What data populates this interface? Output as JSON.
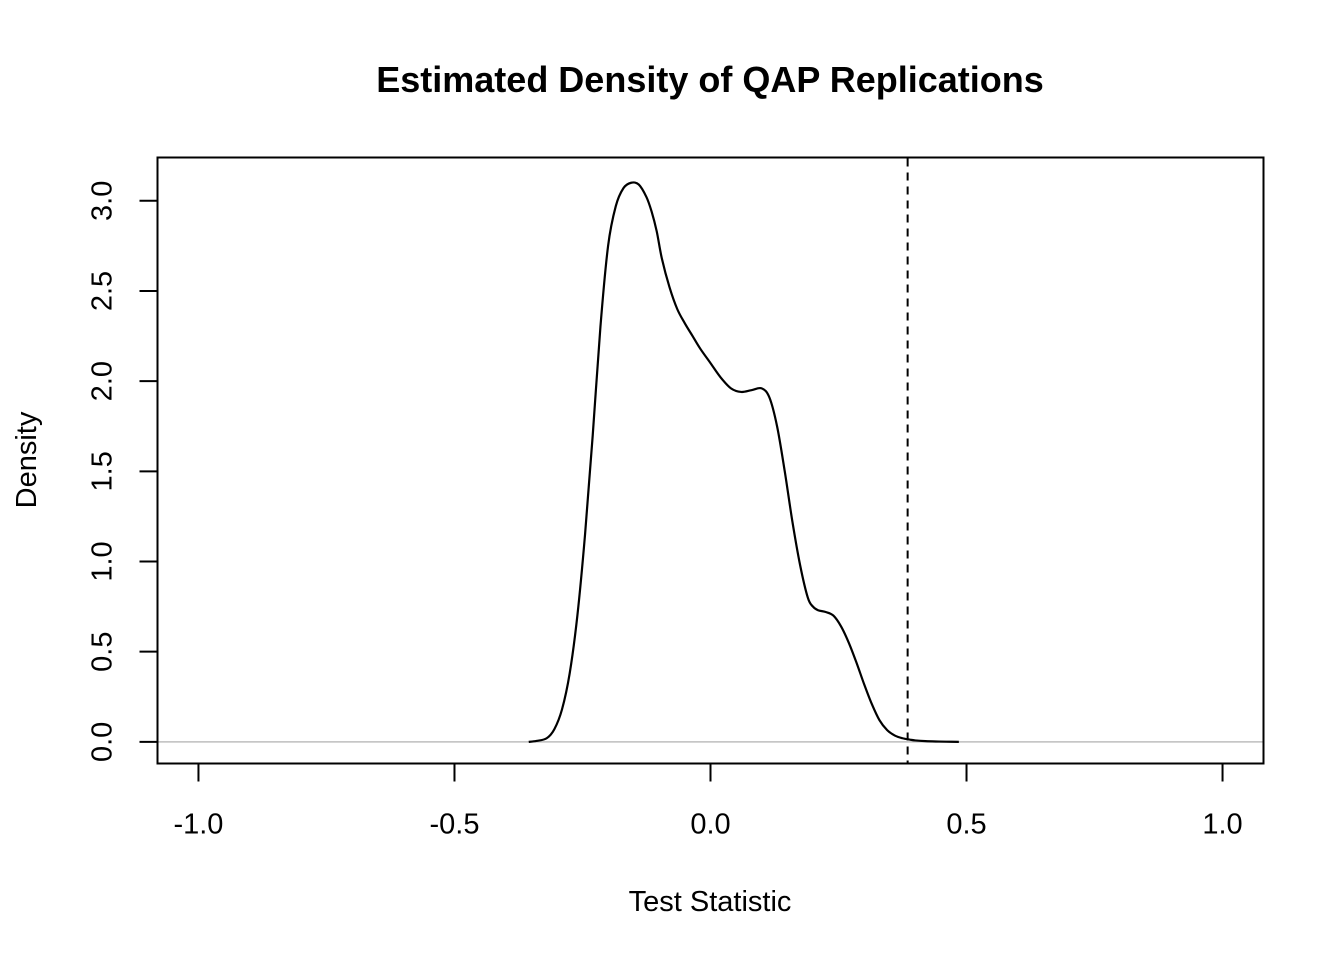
{
  "chart_data": {
    "type": "line",
    "title": "Estimated Density of QAP Replications",
    "xlabel": "Test Statistic",
    "ylabel": "Density",
    "xlim": [
      -1.08,
      1.08
    ],
    "ylim": [
      -0.12,
      3.24
    ],
    "x_ticks": [
      -1.0,
      -0.5,
      0.0,
      0.5,
      1.0
    ],
    "x_tick_labels": [
      "-1.0",
      "-0.5",
      "0.0",
      "0.5",
      "1.0"
    ],
    "y_ticks": [
      0.0,
      0.5,
      1.0,
      1.5,
      2.0,
      2.5,
      3.0
    ],
    "y_tick_labels": [
      "0.0",
      "0.5",
      "1.0",
      "1.5",
      "2.0",
      "2.5",
      "3.0"
    ],
    "grid": false,
    "legend": "none",
    "baseline": {
      "y": 0.0,
      "color": "#bebebe"
    },
    "observed_line": {
      "x": 0.385,
      "style": "dashed",
      "color": "#000000"
    },
    "series": [
      {
        "color": "#000000",
        "x": [
          -0.355,
          -0.34,
          -0.32,
          -0.305,
          -0.29,
          -0.275,
          -0.26,
          -0.245,
          -0.23,
          -0.215,
          -0.2,
          -0.185,
          -0.17,
          -0.155,
          -0.14,
          -0.125,
          -0.115,
          -0.105,
          -0.095,
          -0.08,
          -0.065,
          -0.05,
          -0.035,
          -0.02,
          0.0,
          0.02,
          0.04,
          0.06,
          0.08,
          0.1,
          0.115,
          0.13,
          0.145,
          0.16,
          0.175,
          0.19,
          0.2,
          0.21,
          0.225,
          0.24,
          0.255,
          0.27,
          0.285,
          0.3,
          0.315,
          0.33,
          0.345,
          0.36,
          0.375,
          0.39,
          0.4,
          0.42,
          0.44,
          0.46,
          0.485
        ],
        "y": [
          0.0,
          0.005,
          0.02,
          0.07,
          0.18,
          0.38,
          0.7,
          1.15,
          1.7,
          2.3,
          2.75,
          2.97,
          3.07,
          3.1,
          3.09,
          3.02,
          2.94,
          2.83,
          2.68,
          2.52,
          2.4,
          2.32,
          2.25,
          2.18,
          2.1,
          2.02,
          1.96,
          1.94,
          1.95,
          1.96,
          1.91,
          1.75,
          1.5,
          1.22,
          0.98,
          0.8,
          0.75,
          0.73,
          0.72,
          0.7,
          0.64,
          0.55,
          0.44,
          0.32,
          0.21,
          0.12,
          0.065,
          0.035,
          0.02,
          0.012,
          0.008,
          0.004,
          0.002,
          0.001,
          0.0
        ]
      }
    ]
  }
}
